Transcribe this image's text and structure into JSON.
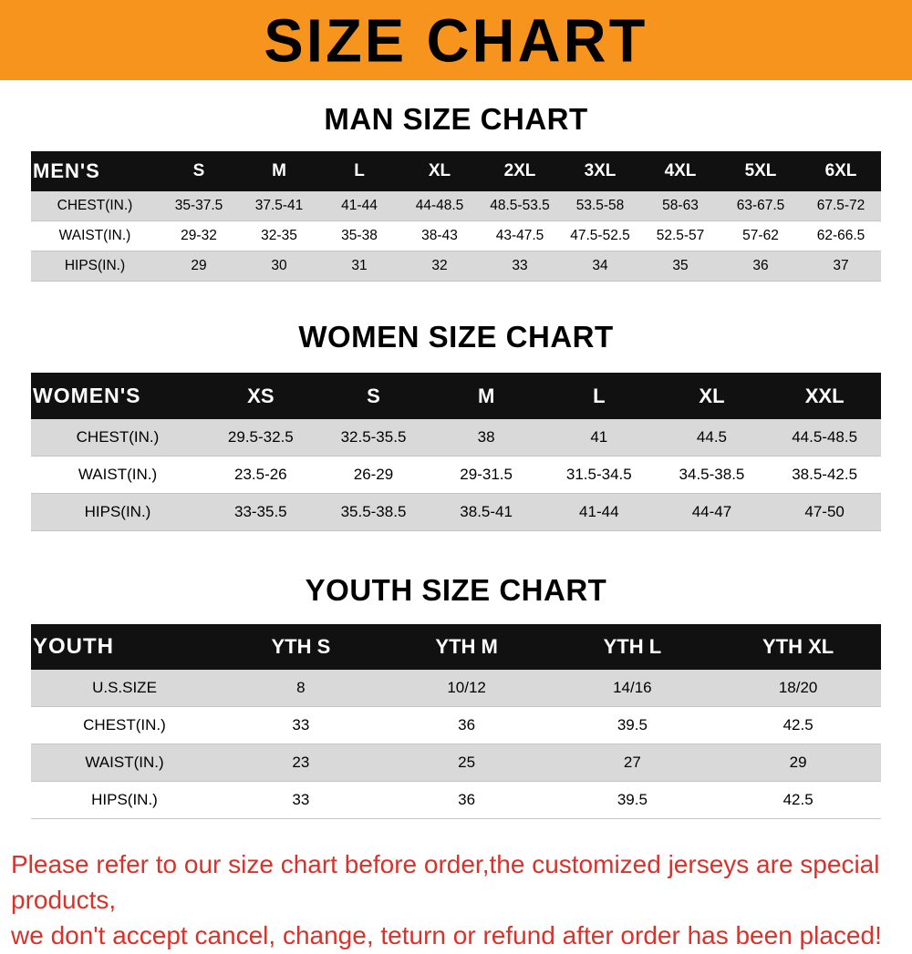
{
  "banner": {
    "title": "SIZE CHART"
  },
  "colors": {
    "banner_bg": "#f7941e",
    "table_header_bg": "#111111",
    "row_gray": "#d9d9d9",
    "footer_red": "#d8322b"
  },
  "sections": [
    {
      "heading": "MAN SIZE CHART",
      "table": {
        "label": "MEN'S",
        "columns": [
          "S",
          "M",
          "L",
          "XL",
          "2XL",
          "3XL",
          "4XL",
          "5XL",
          "6XL"
        ],
        "rows": [
          {
            "label": "CHEST(IN.)",
            "values": [
              "35-37.5",
              "37.5-41",
              "41-44",
              "44-48.5",
              "48.5-53.5",
              "53.5-58",
              "58-63",
              "63-67.5",
              "67.5-72"
            ]
          },
          {
            "label": "WAIST(IN.)",
            "values": [
              "29-32",
              "32-35",
              "35-38",
              "38-43",
              "43-47.5",
              "47.5-52.5",
              "52.5-57",
              "57-62",
              "62-66.5"
            ]
          },
          {
            "label": "HIPS(IN.)",
            "values": [
              "29",
              "30",
              "31",
              "32",
              "33",
              "34",
              "35",
              "36",
              "37"
            ]
          }
        ]
      }
    },
    {
      "heading": "WOMEN SIZE CHART",
      "table": {
        "label": "WOMEN'S",
        "columns": [
          "XS",
          "S",
          "M",
          "L",
          "XL",
          "XXL"
        ],
        "rows": [
          {
            "label": "CHEST(IN.)",
            "values": [
              "29.5-32.5",
              "32.5-35.5",
              "38",
              "41",
              "44.5",
              "44.5-48.5"
            ]
          },
          {
            "label": "WAIST(IN.)",
            "values": [
              "23.5-26",
              "26-29",
              "29-31.5",
              "31.5-34.5",
              "34.5-38.5",
              "38.5-42.5"
            ]
          },
          {
            "label": "HIPS(IN.)",
            "values": [
              "33-35.5",
              "35.5-38.5",
              "38.5-41",
              "41-44",
              "44-47",
              "47-50"
            ]
          }
        ]
      }
    },
    {
      "heading": "YOUTH SIZE CHART",
      "table": {
        "label": "YOUTH",
        "columns": [
          "YTH S",
          "YTH M",
          "YTH L",
          "YTH XL"
        ],
        "rows": [
          {
            "label": "U.S.SIZE",
            "values": [
              "8",
              "10/12",
              "14/16",
              "18/20"
            ]
          },
          {
            "label": "CHEST(IN.)",
            "values": [
              "33",
              "36",
              "39.5",
              "42.5"
            ]
          },
          {
            "label": "WAIST(IN.)",
            "values": [
              "23",
              "25",
              "27",
              "29"
            ]
          },
          {
            "label": "HIPS(IN.)",
            "values": [
              "33",
              "36",
              "39.5",
              "42.5"
            ]
          }
        ]
      }
    }
  ],
  "footer": {
    "line1": "Please refer to our size chart before order,the customized jerseys are special products,",
    "line2": "we don't accept cancel, change, teturn or refund after order has been placed!"
  }
}
